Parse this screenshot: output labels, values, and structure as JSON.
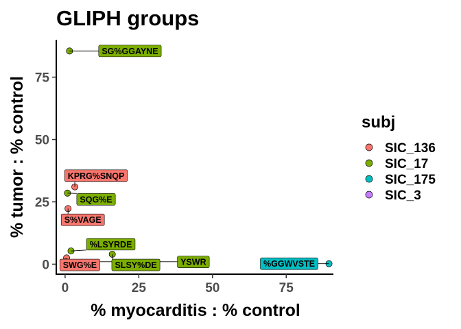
{
  "chart_data": {
    "type": "scatter",
    "title": "GLIPH groups",
    "xlabel": "% myocarditis : % control",
    "ylabel": "% tumor : % control",
    "xlim": [
      -3,
      91
    ],
    "ylim": [
      -4,
      90
    ],
    "xticks": [
      0,
      25,
      50,
      75
    ],
    "yticks": [
      0,
      25,
      50,
      75
    ],
    "grid": false,
    "legend": {
      "title": "subj",
      "position": "right",
      "entries": [
        {
          "name": "SIC_136",
          "color": "#F8766D"
        },
        {
          "name": "SIC_17",
          "color": "#7CAE00"
        },
        {
          "name": "SIC_175",
          "color": "#00BFC4"
        },
        {
          "name": "SIC_3",
          "color": "#C77CFF"
        }
      ]
    },
    "points": [
      {
        "x": 1.5,
        "y": 85.5,
        "subj": "SIC_17",
        "label": "SG%GGAYNE",
        "lx": 22,
        "ly": 85.5
      },
      {
        "x": 3.3,
        "y": 31.0,
        "subj": "SIC_136",
        "label": "KPRG%SNQP",
        "lx": 10.5,
        "ly": 35.5
      },
      {
        "x": 0.8,
        "y": 28.5,
        "subj": "SIC_17",
        "label": "SQG%E",
        "lx": 10.5,
        "ly": 26.0
      },
      {
        "x": 1.0,
        "y": 22.3,
        "subj": "SIC_136",
        "label": "S%VAGE",
        "lx": 6.0,
        "ly": 17.8
      },
      {
        "x": 2.0,
        "y": 5.3,
        "subj": "SIC_17",
        "label": "%LSYRDE",
        "lx": 15.5,
        "ly": 8.0
      },
      {
        "x": 0.5,
        "y": 2.5,
        "subj": "SIC_136",
        "label": "SWG%E",
        "lx": 5.0,
        "ly": -0.3
      },
      {
        "x": 16.0,
        "y": 4.0,
        "subj": "SIC_17",
        "label": "SLSY%DE",
        "lx": 24.0,
        "ly": -0.3
      },
      {
        "x": 0.3,
        "y": 1.0,
        "subj": "SIC_17",
        "label": "YSWR",
        "lx": 43.5,
        "ly": 0.9
      },
      {
        "x": 89.5,
        "y": 0.2,
        "subj": "SIC_175",
        "label": "%GGWVSTE",
        "lx": 76.0,
        "ly": 0.2
      }
    ]
  }
}
